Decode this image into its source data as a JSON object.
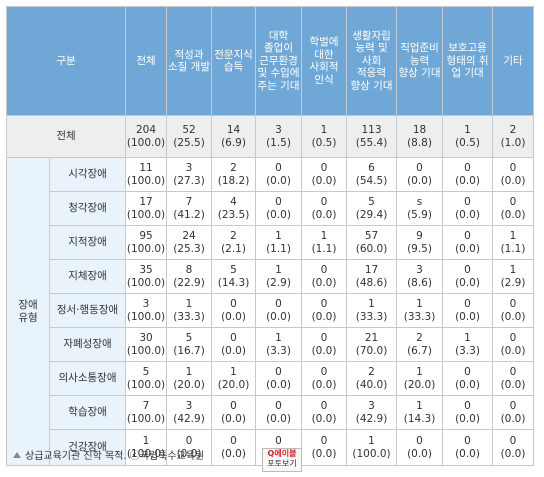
{
  "header": {
    "category": "구분",
    "columns": [
      "전체",
      "적성과\n소질 개발",
      "전문지식\n습득",
      "대학\n졸업이\n근무환경\n및 수입에\n주는 기대",
      "학벌에\n대한\n사회적\n인식",
      "생활자립\n능력 및\n사회\n적응력\n향상 기대",
      "직업준비\n능력\n향상 기대",
      "보호고용\n형태의 취\n업 기대",
      "기타"
    ]
  },
  "total_row": {
    "label": "전체",
    "values": [
      [
        "204",
        "(100.0)"
      ],
      [
        "52",
        "(25.5)"
      ],
      [
        "14",
        "(6.9)"
      ],
      [
        "3",
        "(1.5)"
      ],
      [
        "1",
        "(0.5)"
      ],
      [
        "113",
        "(55.4)"
      ],
      [
        "18",
        "(8.8)"
      ],
      [
        "1",
        "(0.5)"
      ],
      [
        "2",
        "(1.0)"
      ]
    ]
  },
  "group_label": "장애\n유형",
  "rows": [
    {
      "label": "시각장애",
      "values": [
        [
          "11",
          "(100.0)"
        ],
        [
          "3",
          "(27.3)"
        ],
        [
          "2",
          "(18.2)"
        ],
        [
          "0",
          "(0.0)"
        ],
        [
          "0",
          "(0.0)"
        ],
        [
          "6",
          "(54.5)"
        ],
        [
          "0",
          "(0.0)"
        ],
        [
          "0",
          "(0.0)"
        ],
        [
          "0",
          "(0.0)"
        ]
      ]
    },
    {
      "label": "청각장애",
      "values": [
        [
          "17",
          "(100.0)"
        ],
        [
          "7",
          "(41.2)"
        ],
        [
          "4",
          "(23.5)"
        ],
        [
          "0",
          "(0.0)"
        ],
        [
          "0",
          "(0.0)"
        ],
        [
          "5",
          "(29.4)"
        ],
        [
          "s",
          "(5.9)"
        ],
        [
          "0",
          "(0.0)"
        ],
        [
          "0",
          "(0.0)"
        ]
      ]
    },
    {
      "label": "지적장애",
      "values": [
        [
          "95",
          "(100.0)"
        ],
        [
          "24",
          "(25.3)"
        ],
        [
          "2",
          "(2.1)"
        ],
        [
          "1",
          "(1.1)"
        ],
        [
          "1",
          "(1.1)"
        ],
        [
          "57",
          "(60.0)"
        ],
        [
          "9",
          "(9.5)"
        ],
        [
          "0",
          "(0.0)"
        ],
        [
          "1",
          "(1.1)"
        ]
      ]
    },
    {
      "label": "지체장애",
      "values": [
        [
          "35",
          "(100.0)"
        ],
        [
          "8",
          "(22.9)"
        ],
        [
          "5",
          "(14.3)"
        ],
        [
          "1",
          "(2.9)"
        ],
        [
          "0",
          "(0.0)"
        ],
        [
          "17",
          "(48.6)"
        ],
        [
          "3",
          "(8.6)"
        ],
        [
          "0",
          "(0.0)"
        ],
        [
          "1",
          "(2.9)"
        ]
      ]
    },
    {
      "label": "정서·행동장애",
      "values": [
        [
          "3",
          "(100.0)"
        ],
        [
          "1",
          "(33.3)"
        ],
        [
          "0",
          "(0.0)"
        ],
        [
          "0",
          "(0.0)"
        ],
        [
          "0",
          "(0.0)"
        ],
        [
          "1",
          "(33.3)"
        ],
        [
          "1",
          "(33.3)"
        ],
        [
          "0",
          "(0.0)"
        ],
        [
          "0",
          "(0.0)"
        ]
      ]
    },
    {
      "label": "자폐성장애",
      "values": [
        [
          "30",
          "(100.0)"
        ],
        [
          "5",
          "(16.7)"
        ],
        [
          "0",
          "(0.0)"
        ],
        [
          "1",
          "(3.3)"
        ],
        [
          "0",
          "(0.0)"
        ],
        [
          "21",
          "(70.0)"
        ],
        [
          "2",
          "(6.7)"
        ],
        [
          "1",
          "(3.3)"
        ],
        [
          "0",
          "(0.0)"
        ]
      ]
    },
    {
      "label": "의사소통장애",
      "values": [
        [
          "5",
          "(100.0)"
        ],
        [
          "1",
          "(20.0)"
        ],
        [
          "1",
          "(20.0)"
        ],
        [
          "0",
          "(0.0)"
        ],
        [
          "0",
          "(0.0)"
        ],
        [
          "2",
          "(40.0)"
        ],
        [
          "1",
          "(20.0)"
        ],
        [
          "0",
          "(0.0)"
        ],
        [
          "0",
          "(0.0)"
        ]
      ]
    },
    {
      "label": "학습장애",
      "values": [
        [
          "7",
          "(100.0)"
        ],
        [
          "3",
          "(42.9)"
        ],
        [
          "0",
          "(0.0)"
        ],
        [
          "0",
          "(0.0)"
        ],
        [
          "0",
          "(0.0)"
        ],
        [
          "3",
          "(42.9)"
        ],
        [
          "1",
          "(14.3)"
        ],
        [
          "0",
          "(0.0)"
        ],
        [
          "0",
          "(0.0)"
        ]
      ]
    },
    {
      "label": "건강장애",
      "values": [
        [
          "1",
          "(100.0)"
        ],
        [
          "0",
          "(0.0)"
        ],
        [
          "0",
          "(0.0)"
        ],
        [
          "0",
          "(0.0)"
        ],
        [
          "0",
          "(0.0)"
        ],
        [
          "1",
          "(100.0)"
        ],
        [
          "0",
          "(0.0)"
        ],
        [
          "0",
          "(0.0)"
        ],
        [
          "0",
          "(0.0)"
        ]
      ]
    }
  ],
  "caption": "상급교육기관 진학 목적. ⓒ국립특수교육원",
  "photo_badge": {
    "logo": "Q에이블",
    "label": "포토보기"
  }
}
